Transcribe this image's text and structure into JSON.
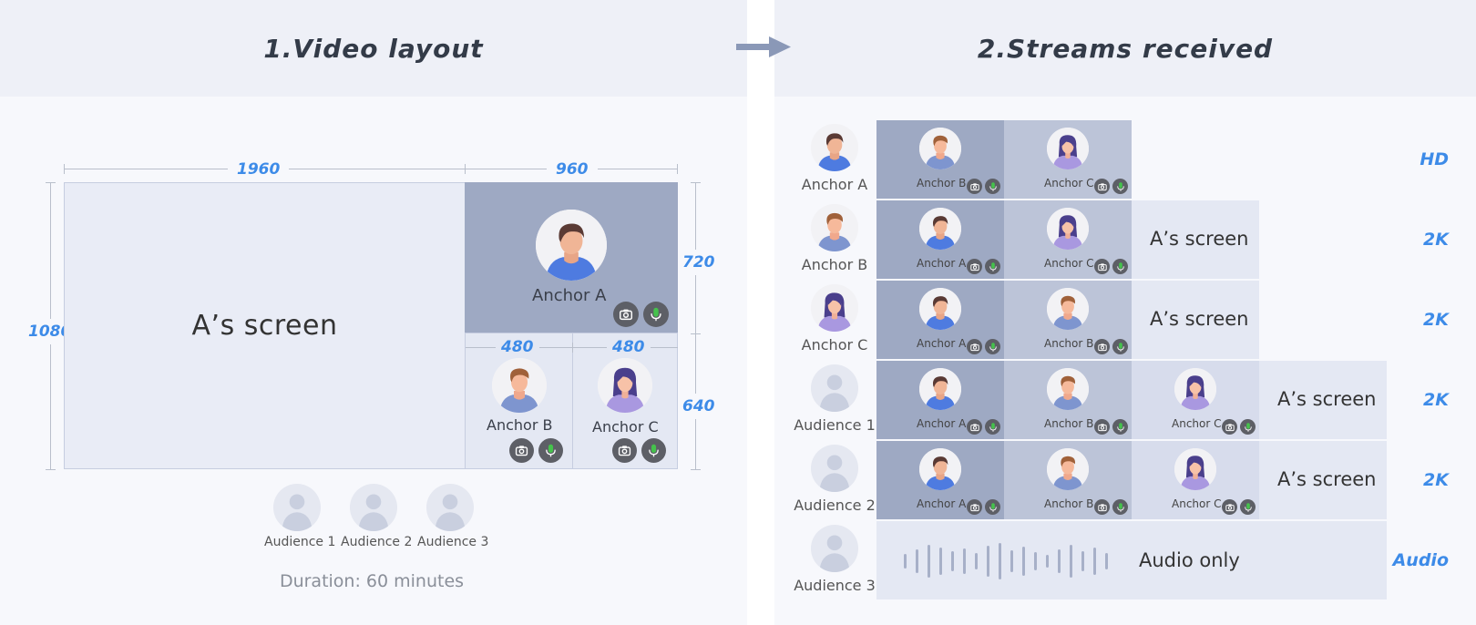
{
  "left": {
    "title": "1.Video layout",
    "dims": {
      "top_total": "1960",
      "top_right": "960",
      "left_total": "1080",
      "right_top": "720",
      "right_bottom": "640",
      "sub_left": "480",
      "sub_right": "480"
    },
    "screen_label": "A’s screen",
    "anchors": {
      "a": "Anchor A",
      "b": "Anchor B",
      "c": "Anchor C"
    },
    "audience": [
      "Audience 1",
      "Audience 2",
      "Audience 3"
    ],
    "duration": "Duration: 60 minutes"
  },
  "right": {
    "title": "2.Streams received",
    "rows": [
      {
        "person": "Anchor A",
        "tiles": [
          "Anchor B",
          "Anchor C"
        ],
        "screen": "",
        "quality": "HD"
      },
      {
        "person": "Anchor B",
        "tiles": [
          "Anchor A",
          "Anchor C"
        ],
        "screen": "A’s screen",
        "quality": "2K"
      },
      {
        "person": "Anchor C",
        "tiles": [
          "Anchor A",
          "Anchor B"
        ],
        "screen": "A’s screen",
        "quality": "2K"
      },
      {
        "person": "Audience 1",
        "tiles": [
          "Anchor A",
          "Anchor B",
          "Anchor C"
        ],
        "screen": "A’s screen",
        "quality": "2K"
      },
      {
        "person": "Audience 2",
        "tiles": [
          "Anchor A",
          "Anchor B",
          "Anchor C"
        ],
        "screen": "A’s screen",
        "quality": "2K"
      },
      {
        "person": "Audience 3",
        "tiles": [],
        "screen": "Audio only",
        "quality": "Audio"
      }
    ]
  },
  "colors": {
    "accent": "#3d8be8",
    "tile_dark": "#9ea9c3",
    "tile_mid": "#bcc4d8",
    "tile_light": "#d7dcec",
    "tile_lighter": "#e4e8f3",
    "mic": "#45c24c"
  },
  "icons": {
    "camera": "camera-icon",
    "mic": "microphone-icon",
    "arrow": "arrow-right-icon",
    "user": "user-placeholder-icon"
  }
}
